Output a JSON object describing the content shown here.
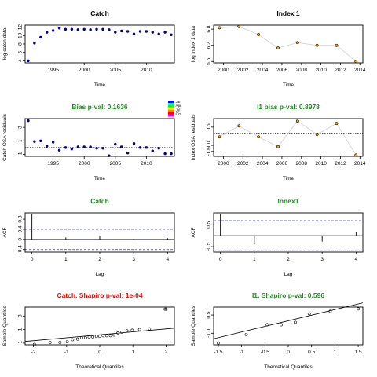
{
  "colors": {
    "green_title": "#228B22",
    "red_title": "#FF0000",
    "black_title": "#000000",
    "point_fill": "#00008B",
    "ci_line": "#3333FF"
  },
  "chart_data": [
    {
      "type": "scatter",
      "title": "Catch",
      "title_color": "black",
      "xlabel": "Time",
      "ylabel": "log catch data",
      "xlim": [
        1990.5,
        2014.5
      ],
      "ylim": [
        3.5,
        12.5
      ],
      "xticks": [
        1995,
        2000,
        2005,
        2010
      ],
      "yticks": [
        4,
        6,
        8,
        10,
        12
      ],
      "point_style": "filled",
      "x": [
        1991,
        1992,
        1993,
        1994,
        1995,
        1996,
        1997,
        1998,
        1999,
        2000,
        2001,
        2002,
        2003,
        2004,
        2005,
        2006,
        2007,
        2008,
        2009,
        2010,
        2011,
        2012,
        2013,
        2014
      ],
      "y": [
        4.0,
        8.2,
        9.6,
        10.8,
        11.2,
        11.8,
        11.5,
        11.5,
        11.4,
        11.5,
        11.4,
        11.5,
        11.5,
        11.4,
        10.8,
        11.1,
        11.0,
        10.4,
        11.0,
        11.0,
        10.8,
        10.4,
        10.8,
        10.2
      ]
    },
    {
      "type": "line",
      "title": "Index 1",
      "title_color": "black",
      "xlabel": "Time",
      "ylabel": "log index 1 data",
      "xlim": [
        1999,
        2014.3
      ],
      "ylim": [
        5.55,
        6.95
      ],
      "xticks": [
        2000,
        2002,
        2004,
        2006,
        2008,
        2010,
        2012,
        2014
      ],
      "yticks": [
        5.6,
        6.2,
        6.8
      ],
      "point_style": "open-orange",
      "x": [
        1999.6,
        2001.6,
        2003.6,
        2005.6,
        2007.6,
        2009.6,
        2011.6,
        2013.6
      ],
      "y": [
        6.85,
        6.9,
        6.6,
        6.1,
        6.3,
        6.2,
        6.2,
        5.6
      ]
    },
    {
      "type": "bubble",
      "title": "Bias p-val: 0.1636",
      "title_color": "green",
      "xlabel": "Time",
      "ylabel": "Catch OSA residuals",
      "xlim": [
        1990.5,
        2014.5
      ],
      "ylim": [
        -1.3,
        4.3
      ],
      "xticks": [
        1995,
        2000,
        2005,
        2010
      ],
      "yticks": [
        -1,
        1,
        3
      ],
      "zero_line": true,
      "legend": [
        "Jan",
        "Apr",
        "Jul",
        "Oct"
      ],
      "legend_colors": [
        "#0000FF",
        "#00FFFF",
        "#00FF00",
        "#FFFF00",
        "#FF8000",
        "#FF0000",
        "#FF00FF"
      ],
      "x": [
        1991,
        1992,
        1993,
        1994,
        1995,
        1996,
        1997,
        1998,
        1999,
        2000,
        2001,
        2002,
        2003,
        2004,
        2005,
        2006,
        2007,
        2008,
        2009,
        2010,
        2011,
        2012,
        2013,
        2014
      ],
      "y": [
        4.0,
        0.9,
        1.0,
        0.2,
        0.8,
        -0.4,
        0.0,
        -0.2,
        0.1,
        0.1,
        0.1,
        -0.1,
        -0.1,
        -1.2,
        0.5,
        0.1,
        -0.8,
        0.6,
        0.0,
        0.0,
        -0.5,
        -0.1,
        -0.9,
        -0.9
      ]
    },
    {
      "type": "line",
      "title": "I1 bias p-val: 0.8978",
      "title_color": "green",
      "xlabel": "Time",
      "ylabel": "Index OSA residuals",
      "xlim": [
        1999,
        2014.3
      ],
      "ylim": [
        -1.9,
        1.2
      ],
      "xticks": [
        2000,
        2002,
        2004,
        2006,
        2008,
        2010,
        2012,
        2014
      ],
      "yticks": [
        -1.5,
        -1.0,
        0.5
      ],
      "ytick_labels": [
        "-1.5",
        "-1.0",
        "0.5"
      ],
      "zero_line": true,
      "point_style": "open-orange",
      "x": [
        1999.6,
        2001.6,
        2003.6,
        2005.6,
        2007.6,
        2009.6,
        2011.6,
        2013.6
      ],
      "y": [
        -0.3,
        0.6,
        -0.3,
        -1.1,
        1.0,
        -0.1,
        0.8,
        -1.8
      ]
    },
    {
      "type": "acf",
      "title": "Catch",
      "title_color": "green",
      "xlabel": "Lag",
      "ylabel": "ACF",
      "xlim": [
        -0.2,
        4.2
      ],
      "ylim": [
        -0.5,
        1.05
      ],
      "xticks": [
        0,
        1,
        2,
        3,
        4
      ],
      "yticks": [
        -0.4,
        0.0,
        0.4,
        0.8
      ],
      "ci": 0.4,
      "zero_line": true,
      "x": [
        0,
        1,
        2,
        3,
        4
      ],
      "y": [
        1.0,
        0.08,
        0.14,
        0.02,
        0.05
      ]
    },
    {
      "type": "acf",
      "title": "Index1",
      "title_color": "green",
      "xlabel": "Lag",
      "ylabel": "ACF",
      "xlim": [
        -0.2,
        4.2
      ],
      "ylim": [
        -0.75,
        1.05
      ],
      "xticks": [
        0,
        1,
        2,
        3,
        4
      ],
      "yticks": [
        -0.5,
        0.5
      ],
      "ci": 0.69,
      "zero_line": true,
      "x": [
        0,
        1,
        2,
        3,
        4
      ],
      "y": [
        1.0,
        -0.4,
        0.0,
        -0.27,
        0.15
      ]
    },
    {
      "type": "qq",
      "title": "Catch, Shapiro p-val: 1e-04",
      "title_color": "red",
      "xlabel": "Theoretical Quantiles",
      "ylabel": "Sample Quantiles",
      "xlim": [
        -2.25,
        2.25
      ],
      "ylim": [
        -1.25,
        4.3
      ],
      "xticks": [
        -2,
        -1,
        0,
        1,
        2
      ],
      "yticks": [
        -1,
        1,
        3
      ],
      "reference_line": [
        [
          -2.25,
          -0.75
        ],
        [
          2.25,
          1.2
        ]
      ],
      "x": [
        -1.97,
        -1.5,
        -1.2,
        -0.98,
        -0.82,
        -0.67,
        -0.55,
        -0.43,
        -0.32,
        -0.21,
        -0.1,
        0.0,
        0.1,
        0.21,
        0.32,
        0.43,
        0.55,
        0.67,
        0.82,
        0.98,
        1.2,
        1.5,
        1.97,
        2.0
      ],
      "y": [
        -1.2,
        -0.9,
        -0.9,
        -0.8,
        -0.5,
        -0.4,
        -0.2,
        -0.2,
        -0.1,
        -0.1,
        0.0,
        0.0,
        0.1,
        0.1,
        0.1,
        0.2,
        0.5,
        0.6,
        0.8,
        0.9,
        1.0,
        1.1,
        4.0,
        4.0
      ]
    },
    {
      "type": "qq",
      "title": "I1, Shapiro p-val: 0.596",
      "title_color": "green",
      "xlabel": "Theoretical Quantiles",
      "ylabel": "Sample Quantiles",
      "xlim": [
        -1.6,
        1.6
      ],
      "ylim": [
        -1.95,
        1.15
      ],
      "xticks": [
        -1.5,
        -1.0,
        -0.5,
        0.0,
        0.5,
        1.0,
        1.5
      ],
      "yticks": [
        -1.0,
        0.5
      ],
      "ytick_labels": [
        "-1.0",
        "0.5"
      ],
      "reference_line": [
        [
          -1.6,
          -1.45
        ],
        [
          1.6,
          1.5
        ]
      ],
      "x": [
        -1.5,
        -0.9,
        -0.45,
        -0.15,
        0.15,
        0.45,
        0.9,
        1.5
      ],
      "y": [
        -1.8,
        -1.1,
        -0.3,
        -0.3,
        -0.1,
        0.6,
        0.8,
        1.0
      ]
    }
  ]
}
